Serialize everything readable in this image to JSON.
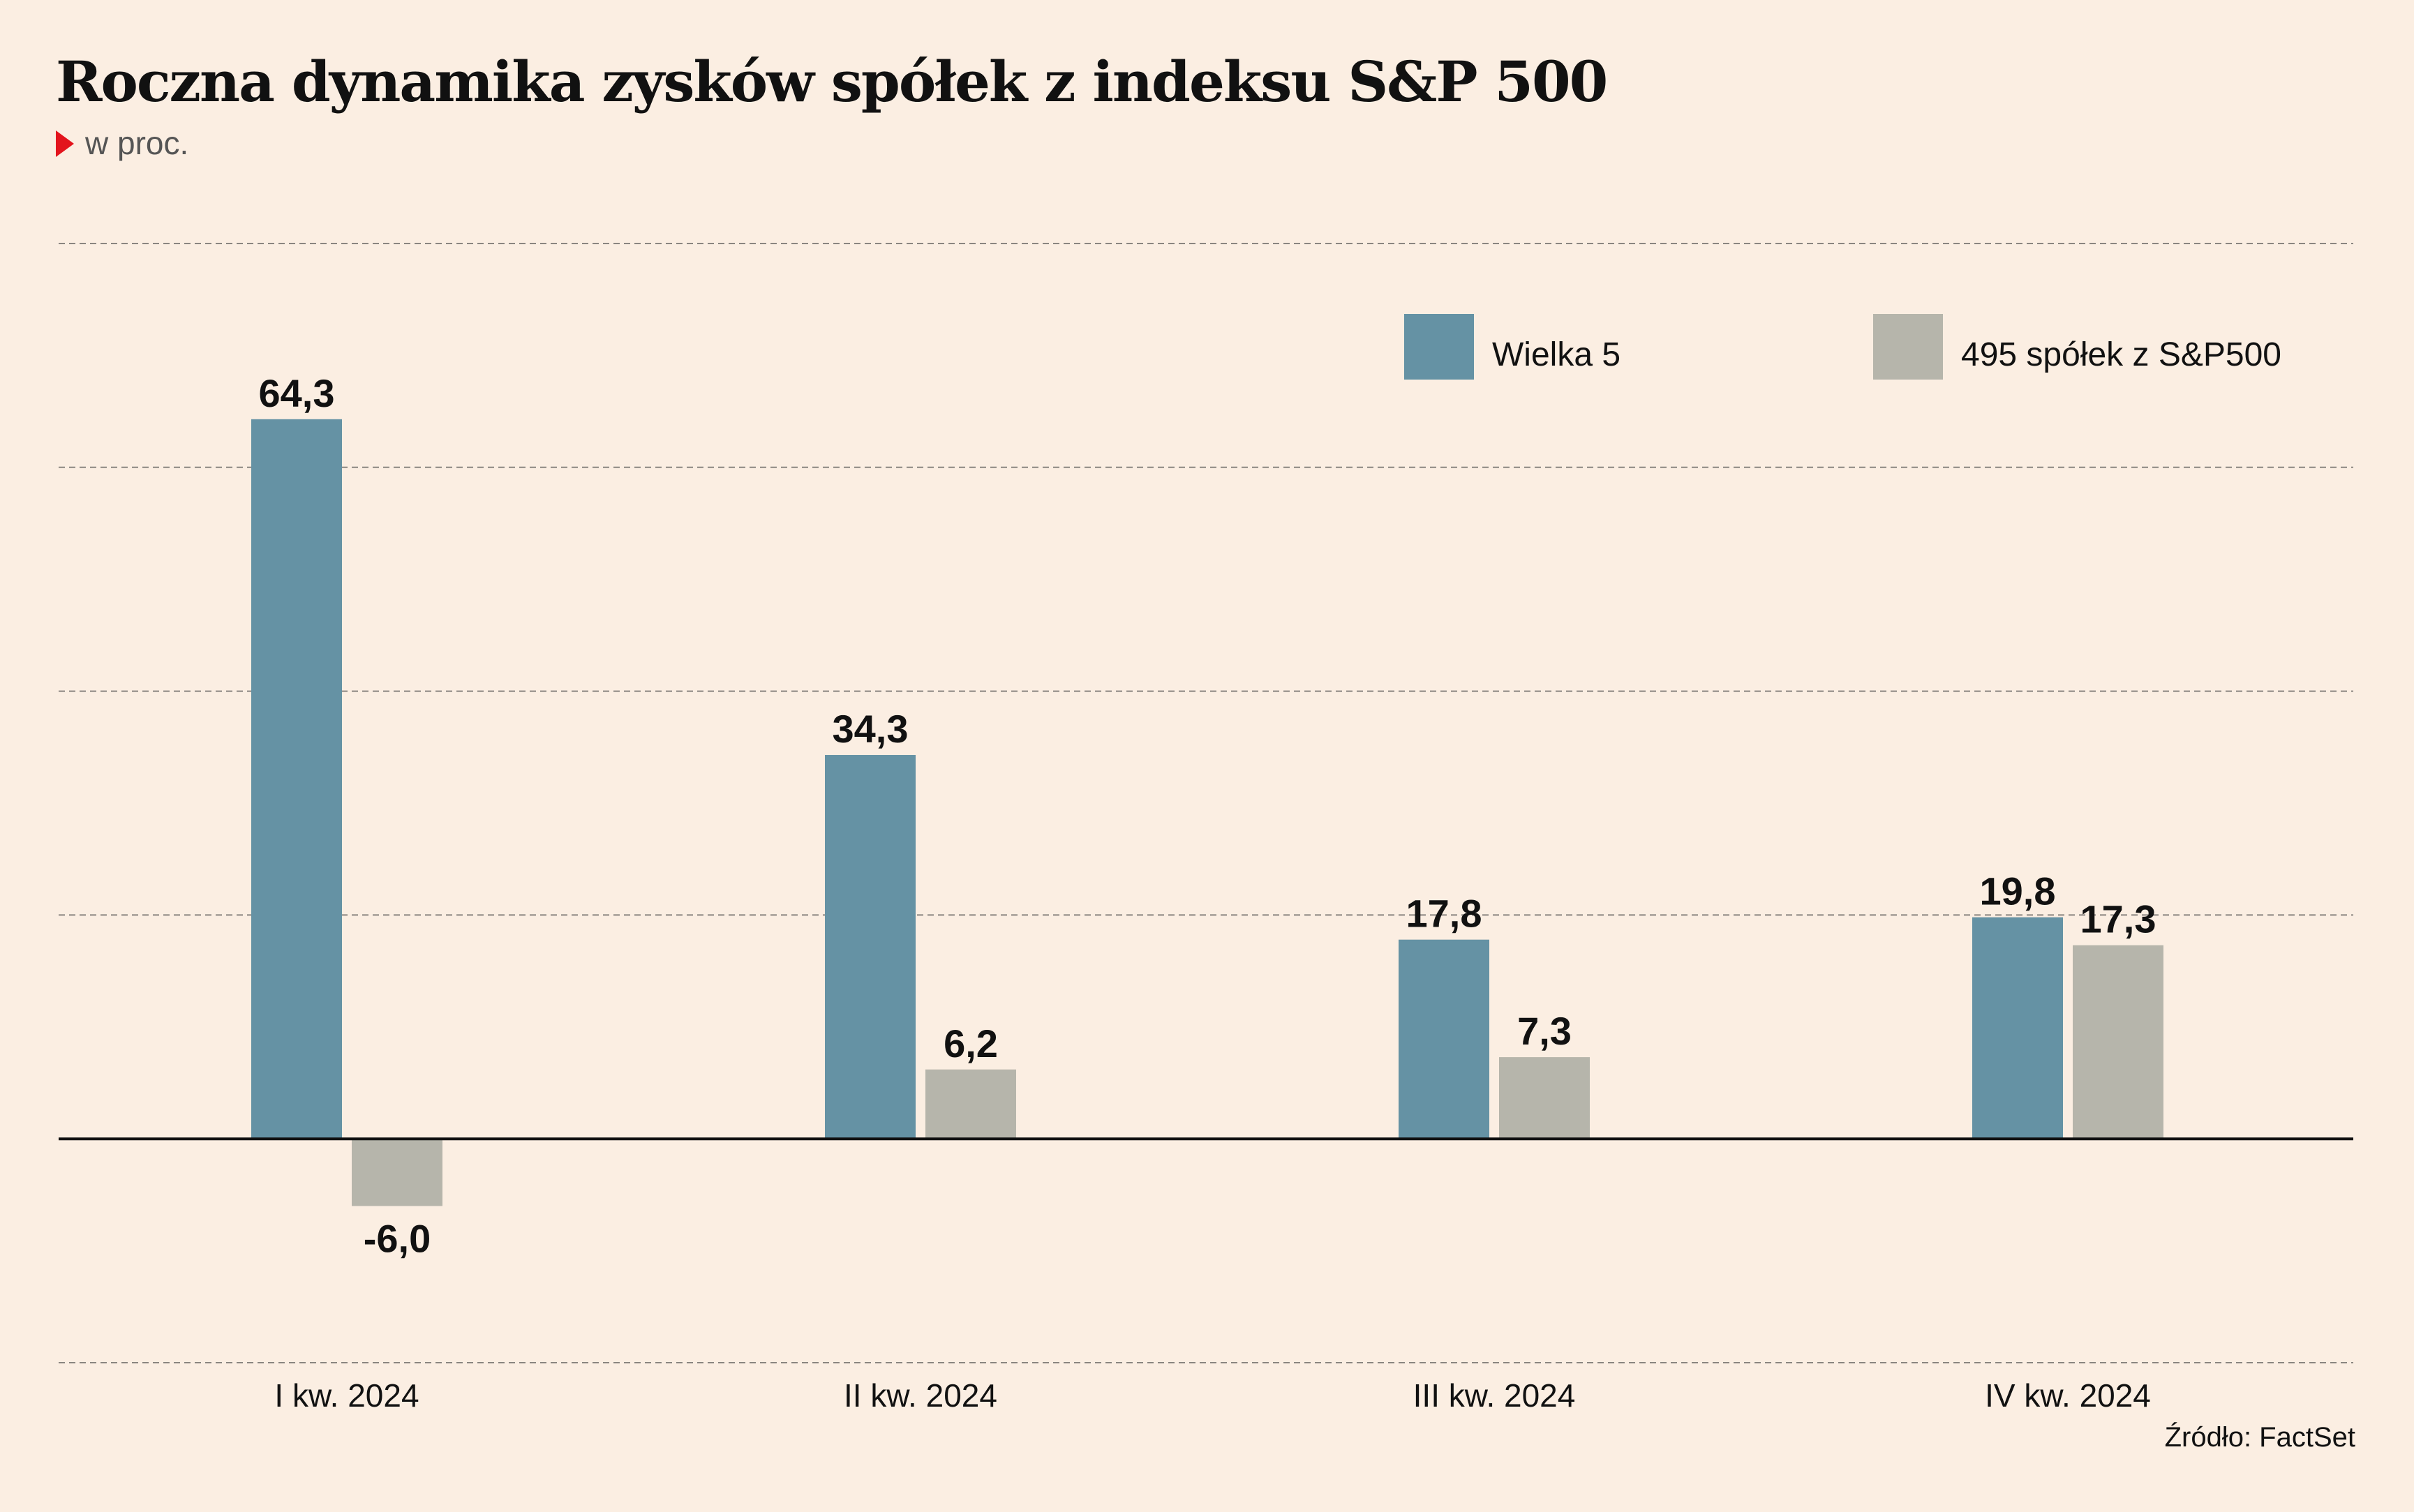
{
  "header": {
    "title": "Roczna dynamika zysków spółek z indeksu S&P 500",
    "subtitle": "w proc."
  },
  "source": "Źródło: FactSet",
  "colors": {
    "background": "#fbeee2",
    "series_big5": "#6592a4",
    "series_rest": "#b6b5ab",
    "marker": "#e3141d"
  },
  "chart_data": {
    "type": "bar",
    "title": "Roczna dynamika zysków spółek z indeksu S&P 500",
    "subtitle": "w proc.",
    "categories": [
      "I kw. 2024",
      "II kw. 2024",
      "III kw. 2024",
      "IV kw. 2024"
    ],
    "series": [
      {
        "name": "Wielka 5",
        "values": [
          64.3,
          34.3,
          17.8,
          19.8
        ],
        "labels": [
          "64,3",
          "34,3",
          "17,8",
          "19,8"
        ],
        "color": "#6592a4"
      },
      {
        "name": "495 spółek z S&P500",
        "values": [
          -6.0,
          6.2,
          7.3,
          17.3
        ],
        "labels": [
          "-6,0",
          "6,2",
          "7,3",
          "17,3"
        ],
        "color": "#b6b5ab"
      }
    ],
    "ylim": [
      -20,
      80
    ],
    "gridlines": [
      -20,
      0,
      20,
      40,
      60,
      80
    ],
    "grid": true,
    "legend_position": "top-right",
    "xlabel": "",
    "ylabel": ""
  }
}
